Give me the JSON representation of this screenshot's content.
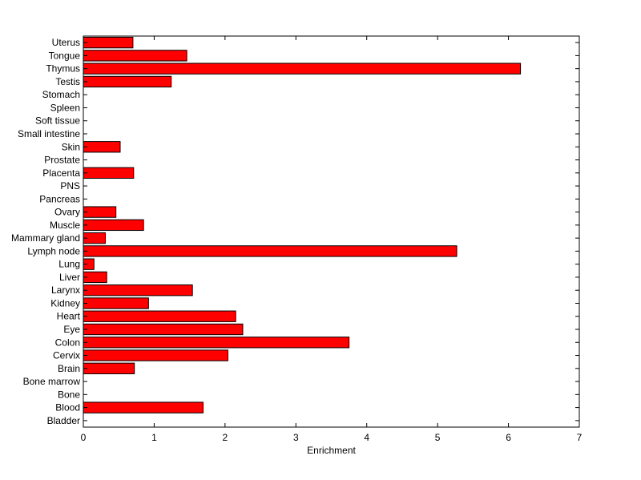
{
  "chart_data": {
    "type": "bar",
    "orientation": "horizontal",
    "title": "",
    "xlabel": "Enrichment",
    "ylabel": "",
    "xlim": [
      0,
      7
    ],
    "xticks": [
      "0",
      "1",
      "2",
      "3",
      "4",
      "5",
      "6",
      "7"
    ],
    "grid": false,
    "legend": "none",
    "bar_color": "#ff0000",
    "bar_edge_color": "#000000",
    "categories": [
      "Bladder",
      "Blood",
      "Bone",
      "Bone marrow",
      "Brain",
      "Cervix",
      "Colon",
      "Eye",
      "Heart",
      "Kidney",
      "Larynx",
      "Liver",
      "Lung",
      "Lymph node",
      "Mammary gland",
      "Muscle",
      "Ovary",
      "Pancreas",
      "PNS",
      "Placenta",
      "Prostate",
      "Skin",
      "Small intestine",
      "Soft tissue",
      "Spleen",
      "Stomach",
      "Testis",
      "Thymus",
      "Tongue",
      "Uterus"
    ],
    "values": [
      0,
      1.69,
      0,
      0,
      0.72,
      2.04,
      3.75,
      2.25,
      2.15,
      0.92,
      1.54,
      0.33,
      0.15,
      5.27,
      0.31,
      0.85,
      0.46,
      0,
      0,
      0.71,
      0,
      0.52,
      0,
      0,
      0,
      0,
      1.24,
      6.17,
      1.46,
      0.7
    ]
  }
}
